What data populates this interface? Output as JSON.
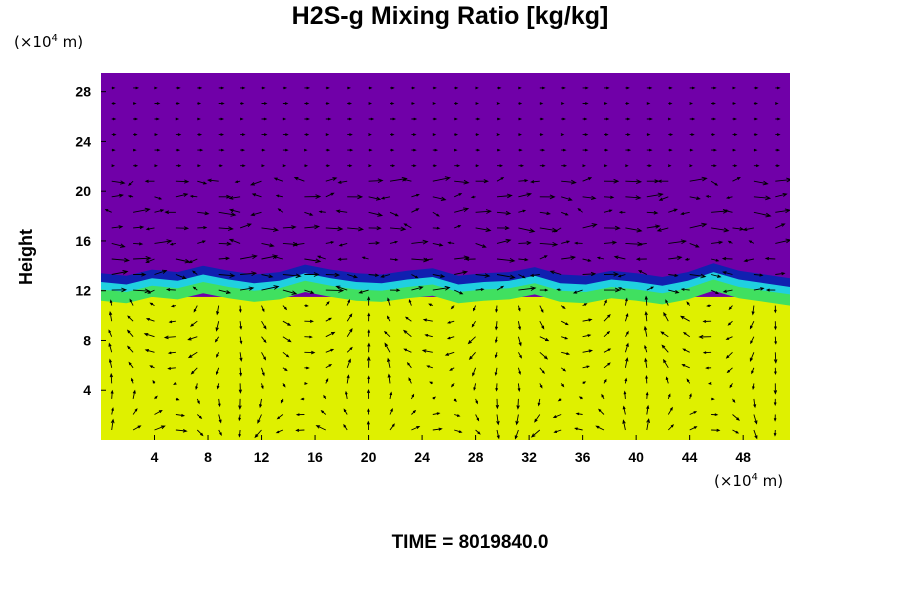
{
  "chart_data": {
    "type": "heatmap",
    "title": "H2S-g Mixing Ratio [kg/kg]",
    "ylabel": "Height",
    "xlabel": "",
    "x_unit": {
      "prefix": "(×10",
      "exponent": "4",
      "suffix": " m)"
    },
    "y_unit": {
      "prefix": "(×10",
      "exponent": "4",
      "suffix": " m)"
    },
    "xlim": [
      0,
      51.5
    ],
    "ylim": [
      0,
      29.5
    ],
    "x_ticks": [
      4,
      8,
      12,
      16,
      20,
      24,
      28,
      32,
      36,
      40,
      44,
      48
    ],
    "y_ticks": [
      4,
      8,
      12,
      16,
      20,
      24,
      28
    ],
    "field_layers": [
      {
        "name": "upper",
        "color": "#7000a8",
        "from_height": 13,
        "to_height": 29.5
      },
      {
        "name": "interface-dark",
        "color": "#1020b0",
        "from_height": 12.6,
        "to_height": 13.4
      },
      {
        "name": "interface-cyan",
        "color": "#20d0e0",
        "from_height": 12.1,
        "to_height": 12.7
      },
      {
        "name": "interface-green",
        "color": "#40e060",
        "from_height": 11.3,
        "to_height": 12.2
      },
      {
        "name": "lower",
        "color": "#dff000",
        "from_height": 0,
        "to_height": 11.5
      }
    ],
    "interface_height": [
      12.8,
      12.6,
      13.1,
      12.9,
      13.4,
      13.0,
      12.7,
      12.9,
      13.5,
      13.1,
      12.8,
      12.7,
      13.0,
      13.2,
      12.6,
      12.8,
      12.9,
      13.3,
      12.7,
      12.6,
      13.0,
      12.8,
      12.5,
      12.9,
      13.6,
      13.0,
      12.7,
      12.4
    ],
    "vectors": "wind vector arrows overlaid",
    "grid": false,
    "legend": "none"
  },
  "footer": {
    "time_label": "TIME = 8019840.0"
  }
}
